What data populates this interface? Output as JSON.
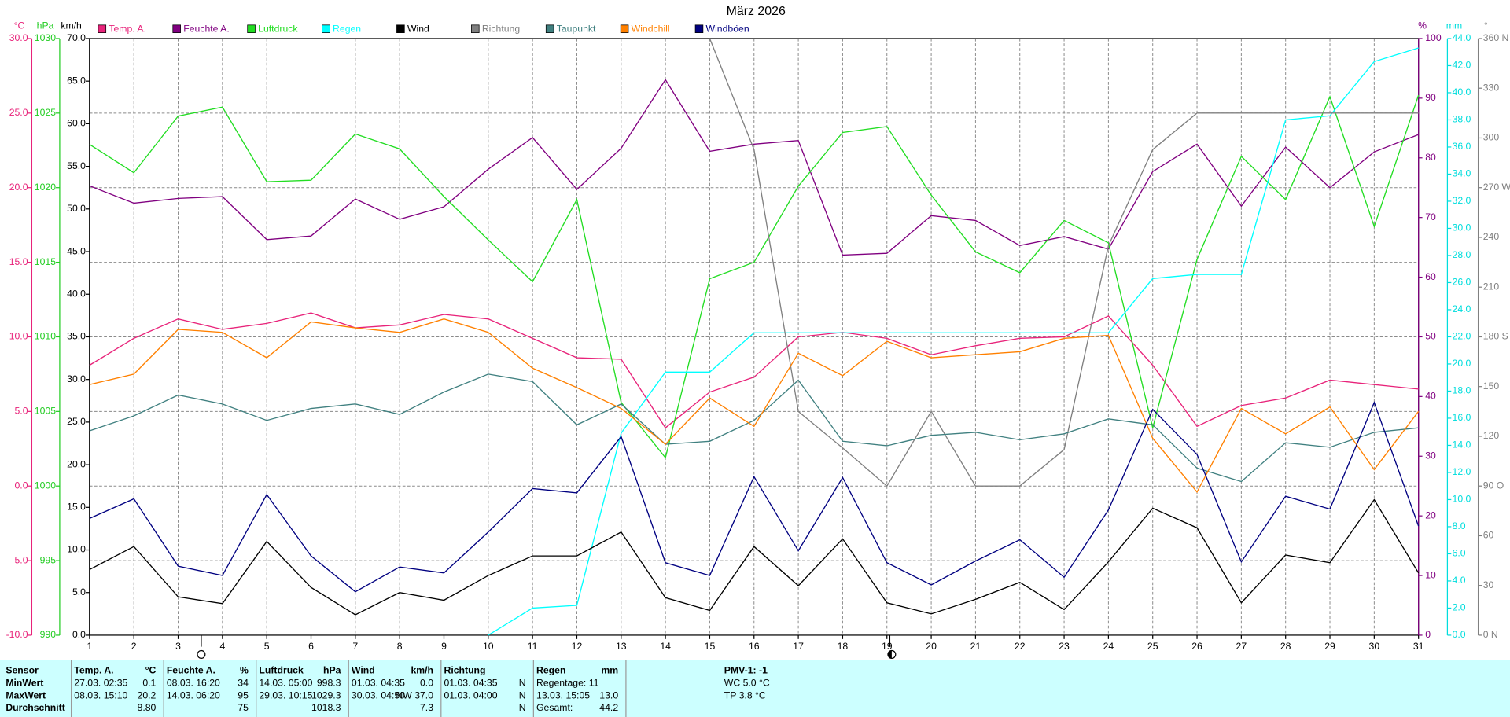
{
  "chart_data": {
    "type": "line",
    "title": "März 2026",
    "x": [
      1,
      2,
      3,
      4,
      5,
      6,
      7,
      8,
      9,
      10,
      11,
      12,
      13,
      14,
      15,
      16,
      17,
      18,
      19,
      20,
      21,
      22,
      23,
      24,
      25,
      26,
      27,
      28,
      29,
      30,
      31
    ],
    "xlim": [
      1,
      31
    ],
    "xticks": [
      1,
      2,
      3,
      4,
      5,
      6,
      7,
      8,
      9,
      10,
      11,
      12,
      13,
      14,
      15,
      16,
      17,
      18,
      19,
      20,
      21,
      22,
      23,
      24,
      25,
      26,
      27,
      28,
      29,
      30,
      31
    ],
    "grid": true,
    "grid_axis": "temp",
    "axes": [
      {
        "id": "temp",
        "unit": "°C",
        "color": "#e8237a",
        "lim": [
          -10,
          30
        ],
        "ticks": [
          {
            "value": -10,
            "label": "-10.0"
          },
          {
            "value": -5,
            "label": "-5.0"
          },
          {
            "value": 0,
            "label": "0.0"
          },
          {
            "value": 5,
            "label": "5.0"
          },
          {
            "value": 10,
            "label": "10.0"
          },
          {
            "value": 15,
            "label": "15.0"
          },
          {
            "value": 20,
            "label": "20.0"
          },
          {
            "value": 25,
            "label": "25.0"
          },
          {
            "value": 30,
            "label": "30.0"
          }
        ]
      },
      {
        "id": "press",
        "unit": "hPa",
        "color": "#22cc22",
        "lim": [
          990,
          1030
        ],
        "ticks": [
          990,
          995,
          1000,
          1005,
          1010,
          1015,
          1020,
          1025,
          1030
        ]
      },
      {
        "id": "wind",
        "unit": "km/h",
        "color": "#000000",
        "lim": [
          0,
          70
        ],
        "ticks": [
          {
            "value": 0,
            "label": "0.0"
          },
          {
            "value": 5,
            "label": "5.0"
          },
          {
            "value": 10,
            "label": "10.0"
          },
          {
            "value": 15,
            "label": "15.0"
          },
          {
            "value": 20,
            "label": "20.0"
          },
          {
            "value": 25,
            "label": "25.0"
          },
          {
            "value": 30,
            "label": "30.0"
          },
          {
            "value": 35,
            "label": "35.0"
          },
          {
            "value": 40,
            "label": "40.0"
          },
          {
            "value": 45,
            "label": "45.0"
          },
          {
            "value": 50,
            "label": "50.0"
          },
          {
            "value": 55,
            "label": "55.0"
          },
          {
            "value": 60,
            "label": "60.0"
          },
          {
            "value": 65,
            "label": "65.0"
          },
          {
            "value": 70,
            "label": "70.0"
          }
        ]
      },
      {
        "id": "hum",
        "unit": "%",
        "color": "#800080",
        "lim": [
          0,
          100
        ],
        "ticks": [
          0,
          10,
          20,
          30,
          40,
          50,
          60,
          70,
          80,
          90,
          100
        ]
      },
      {
        "id": "rain",
        "unit": "mm",
        "color": "#00dddd",
        "lim": [
          0,
          44
        ],
        "ticks": [
          {
            "value": 0,
            "label": "0.0"
          },
          {
            "value": 2,
            "label": "2.0"
          },
          {
            "value": 4,
            "label": "4.0"
          },
          {
            "value": 6,
            "label": "6.0"
          },
          {
            "value": 8,
            "label": "8.0"
          },
          {
            "value": 10,
            "label": "10.0"
          },
          {
            "value": 12,
            "label": "12.0"
          },
          {
            "value": 14,
            "label": "14.0"
          },
          {
            "value": 16,
            "label": "16.0"
          },
          {
            "value": 18,
            "label": "18.0"
          },
          {
            "value": 20,
            "label": "20.0"
          },
          {
            "value": 22,
            "label": "22.0"
          },
          {
            "value": 24,
            "label": "24.0"
          },
          {
            "value": 26,
            "label": "26.0"
          },
          {
            "value": 28,
            "label": "28.0"
          },
          {
            "value": 30,
            "label": "30.0"
          },
          {
            "value": 32,
            "label": "32.0"
          },
          {
            "value": 34,
            "label": "34.0"
          },
          {
            "value": 36,
            "label": "36.0"
          },
          {
            "value": 38,
            "label": "38.0"
          },
          {
            "value": 40,
            "label": "40.0"
          },
          {
            "value": 42,
            "label": "42.0"
          },
          {
            "value": 44,
            "label": "44.0"
          }
        ]
      },
      {
        "id": "dir",
        "unit": "°",
        "color": "#808080",
        "lim": [
          0,
          360
        ],
        "ticks": [
          {
            "value": 0,
            "label": "0 N"
          },
          30,
          60,
          {
            "value": 90,
            "label": "90 O"
          },
          120,
          150,
          {
            "value": 180,
            "label": "180 S"
          },
          210,
          240,
          {
            "value": 270,
            "label": "270 W"
          },
          300,
          330,
          {
            "value": 360,
            "label": "360 N"
          }
        ]
      }
    ],
    "series": [
      {
        "name": "Temp. A.",
        "color": "#e8237a",
        "axis": "temp",
        "values": [
          8.1,
          9.9,
          11.2,
          10.5,
          10.9,
          11.6,
          10.6,
          10.8,
          11.5,
          11.2,
          9.9,
          8.6,
          8.5,
          3.9,
          6.3,
          7.3,
          10.0,
          10.3,
          9.9,
          8.8,
          9.4,
          9.9,
          10.0,
          11.4,
          8.1,
          4.0,
          5.4,
          5.9,
          7.1,
          6.8,
          6.5
        ]
      },
      {
        "name": "Feuchte A.",
        "color": "#800080",
        "axis": "hum",
        "values": [
          75.3,
          72.4,
          73.2,
          73.5,
          66.3,
          66.9,
          73.1,
          69.7,
          71.8,
          78.1,
          83.4,
          74.7,
          81.6,
          93.1,
          81.1,
          82.3,
          82.9,
          63.7,
          64.0,
          70.3,
          69.5,
          65.3,
          66.8,
          64.7,
          77.7,
          82.3,
          71.9,
          81.8,
          75.0,
          81.0,
          83.9
        ]
      },
      {
        "name": "Luftdruck",
        "color": "#22dd22",
        "axis": "press",
        "values": [
          1022.9,
          1021.0,
          1024.8,
          1025.4,
          1020.4,
          1020.5,
          1023.6,
          1022.6,
          1019.4,
          1016.5,
          1013.7,
          1019.2,
          1005.6,
          1001.9,
          1013.9,
          1015.0,
          1020.1,
          1023.7,
          1024.1,
          1019.5,
          1015.7,
          1014.3,
          1017.8,
          1016.3,
          1003.9,
          1015.2,
          1022.1,
          1019.2,
          1026.1,
          1017.4,
          1026.2
        ]
      },
      {
        "name": "Regen",
        "color": "#00ffff",
        "axis": "rain",
        "values": [
          null,
          null,
          null,
          null,
          null,
          null,
          null,
          null,
          null,
          0,
          2.0,
          2.2,
          14.9,
          19.4,
          19.4,
          22.3,
          22.3,
          22.3,
          22.3,
          22.3,
          22.3,
          22.3,
          22.3,
          22.3,
          26.3,
          26.6,
          26.6,
          38.0,
          38.3,
          42.3,
          43.3
        ]
      },
      {
        "name": "Wind",
        "color": "#000000",
        "axis": "wind",
        "values": [
          7.7,
          10.4,
          4.5,
          3.7,
          11.0,
          5.6,
          2.4,
          5.0,
          4.1,
          7.0,
          9.3,
          9.3,
          12.1,
          4.4,
          2.9,
          10.4,
          5.8,
          11.3,
          3.8,
          2.5,
          4.2,
          6.2,
          3.0,
          8.6,
          14.9,
          12.6,
          3.8,
          9.4,
          8.5,
          15.9,
          7.3
        ]
      },
      {
        "name": "Richtung",
        "color": "#808080",
        "axis": "dir",
        "values": [
          null,
          null,
          null,
          null,
          null,
          null,
          null,
          null,
          null,
          null,
          null,
          null,
          null,
          null,
          360,
          293,
          135,
          113,
          90,
          135,
          90,
          90,
          112,
          235,
          293,
          315,
          315,
          315,
          315,
          315,
          315
        ]
      },
      {
        "name": "Taupunkt",
        "color": "#408080",
        "axis": "temp",
        "values": [
          3.7,
          4.7,
          6.1,
          5.5,
          4.4,
          5.2,
          5.5,
          4.8,
          6.3,
          7.5,
          7.0,
          4.1,
          5.5,
          2.8,
          3.0,
          4.4,
          7.1,
          3.0,
          2.7,
          3.4,
          3.6,
          3.1,
          3.5,
          4.5,
          4.1,
          1.2,
          0.3,
          2.9,
          2.6,
          3.6,
          3.9
        ]
      },
      {
        "name": "Windchill",
        "color": "#ff8000",
        "axis": "temp",
        "values": [
          6.8,
          7.5,
          10.5,
          10.3,
          8.6,
          11.0,
          10.6,
          10.3,
          11.2,
          10.3,
          7.9,
          6.6,
          5.2,
          2.8,
          5.9,
          4.0,
          8.9,
          7.4,
          9.7,
          8.6,
          8.8,
          9.0,
          9.9,
          10.1,
          3.2,
          -0.4,
          5.2,
          3.5,
          5.3,
          1.1,
          5.0
        ]
      },
      {
        "name": "Windböen",
        "color": "#000080",
        "axis": "wind",
        "values": [
          13.7,
          16.0,
          8.1,
          7.0,
          16.5,
          9.3,
          5.1,
          8.0,
          7.3,
          12.1,
          17.2,
          16.7,
          23.3,
          8.5,
          7.0,
          18.6,
          9.9,
          18.5,
          8.5,
          5.9,
          8.7,
          11.2,
          6.8,
          14.7,
          26.5,
          21.2,
          8.6,
          16.3,
          14.8,
          27.3,
          12.8
        ]
      }
    ]
  },
  "stats": {
    "row_labels": [
      "Sensor",
      "MinWert",
      "MaxWert",
      "Durchschnitt"
    ],
    "columns": [
      {
        "name": "Temp. A.",
        "unit": "°C",
        "min": {
          "time": "27.03. 02:35",
          "value": "0.1"
        },
        "max": {
          "time": "08.03. 15:10",
          "value": "20.2"
        },
        "avg": {
          "value": "8.80"
        }
      },
      {
        "name": "Feuchte A.",
        "unit": "%",
        "min": {
          "time": "08.03. 16:20",
          "value": "34"
        },
        "max": {
          "time": "14.03. 06:20",
          "value": "95"
        },
        "avg": {
          "value": "75"
        }
      },
      {
        "name": "Luftdruck",
        "unit": "hPa",
        "min": {
          "time": "14.03. 05:00",
          "value": "998.3"
        },
        "max": {
          "time": "29.03. 10:15",
          "value": "1029.3"
        },
        "avg": {
          "value": "1018.3"
        }
      },
      {
        "name": "Wind",
        "unit": "km/h",
        "min": {
          "time": "01.03. 04:35",
          "value": "0.0"
        },
        "max": {
          "time": "30.03. 04:50",
          "value": "NW 37.0"
        },
        "avg": {
          "value": "7.3"
        }
      },
      {
        "name": "Richtung",
        "min": {
          "time": "01.03. 04:35",
          "value": "N"
        },
        "max": {
          "time": "01.03. 04:00",
          "value": "N"
        },
        "avg": {
          "value": "N"
        }
      },
      {
        "name": "Regen",
        "unit": "mm",
        "min": {
          "time": "Regentage: 11"
        },
        "max": {
          "time": "13.03. 15:05",
          "value": "13.0"
        },
        "avg": {
          "time": "Gesamt:",
          "value": "44.2"
        }
      }
    ],
    "pmv": {
      "title": "PMV-1: -1",
      "lines": [
        "WC 5.0 °C",
        "TP 3.8 °C"
      ]
    }
  }
}
